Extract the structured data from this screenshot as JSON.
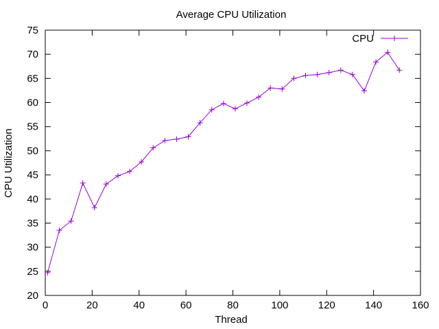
{
  "chart_data": {
    "type": "line",
    "title": "Average CPU Utilization",
    "xlabel": "Thread",
    "ylabel": "CPU Utilization",
    "xlim": [
      0,
      160
    ],
    "ylim": [
      20,
      75
    ],
    "xticks": [
      0,
      20,
      40,
      60,
      80,
      100,
      120,
      140,
      160
    ],
    "yticks": [
      20,
      25,
      30,
      35,
      40,
      45,
      50,
      55,
      60,
      65,
      70,
      75
    ],
    "grid": false,
    "legend": {
      "position": "top-right",
      "entries": [
        "CPU"
      ]
    },
    "series": [
      {
        "name": "CPU",
        "color": "#9400d3",
        "marker": "plus",
        "x": [
          1,
          6,
          11,
          16,
          21,
          26,
          31,
          36,
          41,
          46,
          51,
          56,
          61,
          66,
          71,
          76,
          81,
          86,
          91,
          96,
          101,
          106,
          111,
          116,
          121,
          126,
          131,
          136,
          141,
          146,
          151
        ],
        "y": [
          24.7,
          33.5,
          35.4,
          43.3,
          38.2,
          43.1,
          44.8,
          45.7,
          47.7,
          50.6,
          52.1,
          52.4,
          52.9,
          55.8,
          58.5,
          59.8,
          58.7,
          59.9,
          61.1,
          63.0,
          62.8,
          65.0,
          65.6,
          65.8,
          66.2,
          66.7,
          65.8,
          62.4,
          68.4,
          70.4,
          66.7
        ]
      }
    ]
  }
}
